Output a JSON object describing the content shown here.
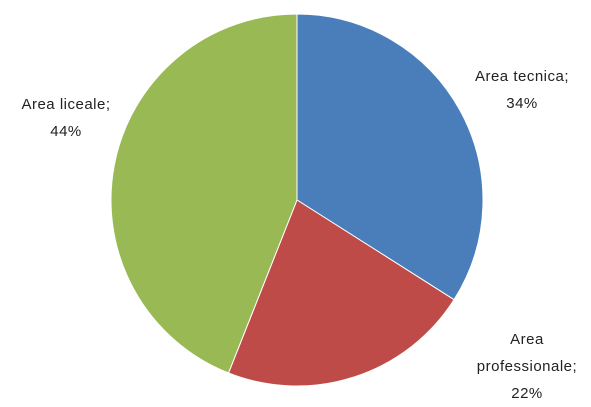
{
  "chart_data": {
    "type": "pie",
    "categories": [
      "Area tecnica;",
      "Area professionale;",
      "Area liceale;"
    ],
    "values": [
      34,
      22,
      44
    ],
    "value_labels": [
      "34%",
      "22%",
      "44%"
    ],
    "colors": [
      "#4a7ebb",
      "#be4b48",
      "#98b954"
    ]
  }
}
